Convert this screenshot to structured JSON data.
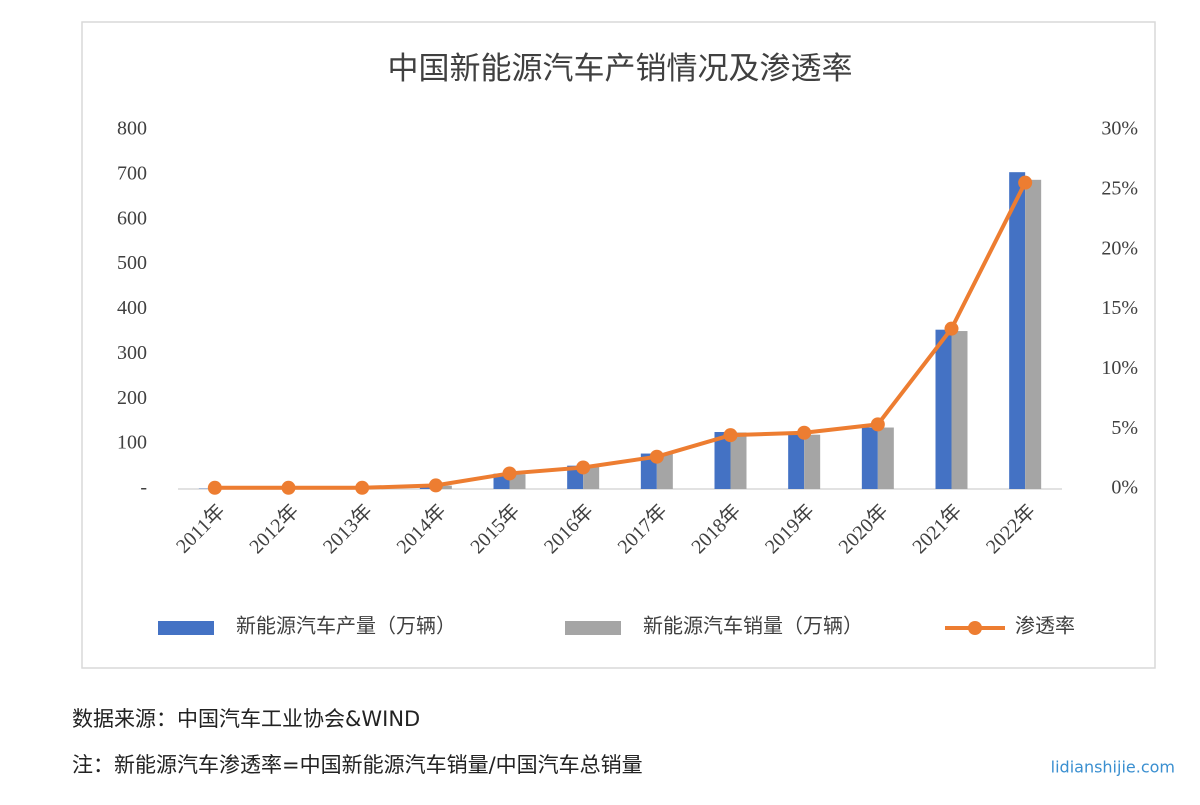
{
  "chart_data": {
    "type": "bar-line",
    "title": "中国新能源汽车产销情况及渗透率",
    "categories": [
      "2011年",
      "2012年",
      "2013年",
      "2014年",
      "2015年",
      "2016年",
      "2017年",
      "2018年",
      "2019年",
      "2020年",
      "2021年",
      "2022年"
    ],
    "series": [
      {
        "name": "新能源汽车产量（万辆）",
        "type": "bar",
        "color": "#4472c4",
        "values": [
          0.8,
          1.3,
          1.8,
          7.8,
          34,
          52,
          79,
          127,
          124,
          137,
          355,
          706
        ]
      },
      {
        "name": "新能源汽车销量（万辆）",
        "type": "bar",
        "color": "#a5a5a5",
        "values": [
          0.8,
          1.3,
          1.8,
          7.5,
          33,
          51,
          78,
          126,
          121,
          137,
          352,
          689
        ]
      },
      {
        "name": "渗透率",
        "type": "line",
        "color": "#ed7d31",
        "axis": "y2",
        "values": [
          0.1,
          0.1,
          0.1,
          0.3,
          1.3,
          1.8,
          2.7,
          4.5,
          4.7,
          5.4,
          13.4,
          25.6
        ]
      }
    ],
    "ylim": [
      0,
      800
    ],
    "yticks": [
      {
        "value": 0,
        "label": "-"
      },
      100,
      200,
      300,
      400,
      500,
      600,
      700,
      800
    ],
    "y2lim": [
      0,
      30
    ],
    "y2ticks": [
      {
        "value": 0,
        "label": "0%"
      },
      {
        "value": 5,
        "label": "5%"
      },
      {
        "value": 10,
        "label": "10%"
      },
      {
        "value": 15,
        "label": "15%"
      },
      {
        "value": 20,
        "label": "20%"
      },
      {
        "value": 25,
        "label": "25%"
      },
      {
        "value": 30,
        "label": "30%"
      }
    ],
    "legend": "bottom",
    "source": "数据来源：中国汽车工业协会&WIND",
    "note": "注：新能源汽车渗透率=中国新能源汽车销量/中国汽车总销量",
    "watermark": "lidianshijie.com"
  }
}
